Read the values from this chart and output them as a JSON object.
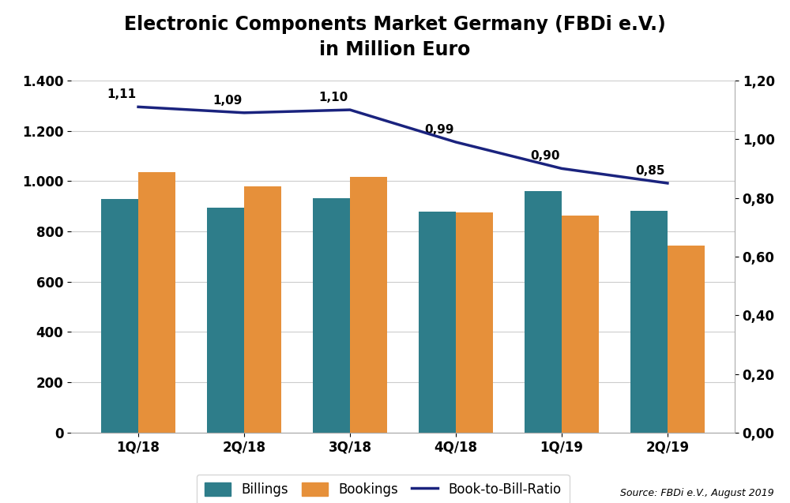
{
  "categories": [
    "1Q/18",
    "2Q/18",
    "3Q/18",
    "4Q/18",
    "1Q/19",
    "2Q/19"
  ],
  "billings": [
    930,
    895,
    932,
    877,
    961,
    882
  ],
  "bookings": [
    1035,
    978,
    1018,
    874,
    862,
    745
  ],
  "book_to_bill": [
    1.11,
    1.09,
    1.1,
    0.99,
    0.9,
    0.85
  ],
  "book_to_bill_labels": [
    "1,11",
    "1,09",
    "1,10",
    "0,99",
    "0,90",
    "0,85"
  ],
  "billings_color": "#2e7d8a",
  "bookings_color": "#e6903a",
  "line_color": "#1a237e",
  "title": "Electronic Components Market Germany (FBDi e.V.)\nin Million Euro",
  "ylim_left": [
    0,
    1400
  ],
  "ylim_right": [
    0.0,
    1.2
  ],
  "yticks_left": [
    0,
    200,
    400,
    600,
    800,
    1000,
    1200,
    1400
  ],
  "yticks_right": [
    0.0,
    0.2,
    0.4,
    0.6,
    0.8,
    1.0,
    1.2
  ],
  "ytick_labels_left": [
    "0",
    "200",
    "400",
    "600",
    "800",
    "1.000",
    "1.200",
    "1.400"
  ],
  "ytick_labels_right": [
    "0,00",
    "0,20",
    "0,40",
    "0,60",
    "0,80",
    "1,00",
    "1,20"
  ],
  "legend_labels": [
    "Billings",
    "Bookings",
    "Book-to-Bill-Ratio"
  ],
  "source_text": "Source: FBDi e.V., August 2019",
  "background_color": "#ffffff",
  "bar_width": 0.35,
  "title_fontsize": 17,
  "tick_fontsize": 12,
  "label_fontsize": 12,
  "annotation_fontsize": 11
}
